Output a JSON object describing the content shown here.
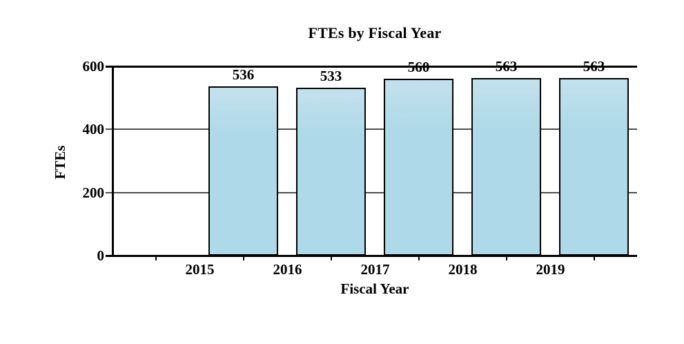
{
  "chart_data": {
    "type": "bar",
    "title": "FTEs by Fiscal Year",
    "xlabel": "Fiscal Year",
    "ylabel": "FTEs",
    "categories": [
      "2015",
      "2016",
      "2017",
      "2018",
      "2019"
    ],
    "values": [
      536,
      533,
      560,
      563,
      563
    ],
    "yticks": [
      0,
      200,
      400,
      600
    ],
    "ylim": [
      0,
      600
    ],
    "grid": "horizontal gridlines at 200 and 400, solid axis lines at 0 and 600",
    "legend_position": "none",
    "bar_value_labels_shown": true
  },
  "colors": {
    "background": "#FFFFFF",
    "bar_fill": "#ADD9E8",
    "bar_fill_highlight": "#C3E1EC",
    "bar_border": "#000000",
    "gridline": "#4D4D4D",
    "axis": "#000000",
    "text": "#000000"
  }
}
